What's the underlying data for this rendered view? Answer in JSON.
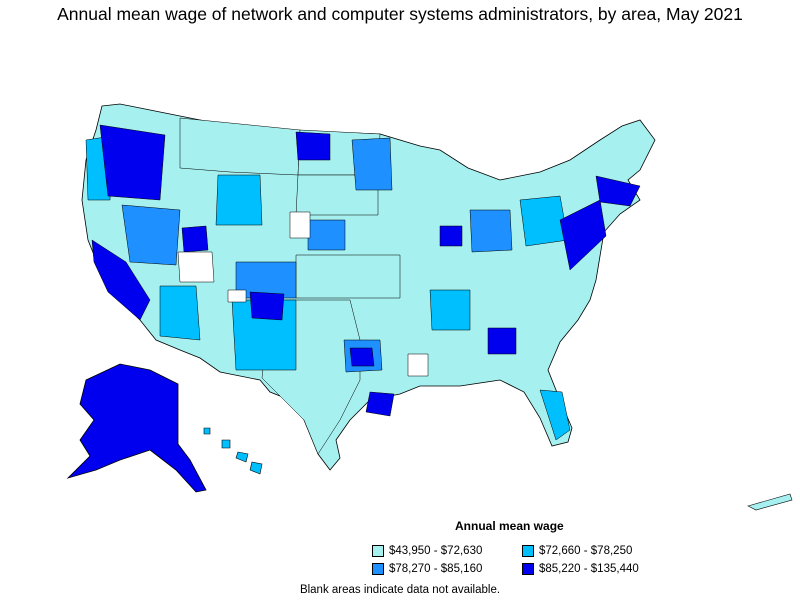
{
  "title": "Annual mean wage of network and computer systems administrators, by area, May 2021",
  "legend": {
    "title": "Annual mean wage",
    "items": [
      {
        "label": "$43,950 - $72,630",
        "color": "#a6f0f0"
      },
      {
        "label": "$72,660 - $78,250",
        "color": "#00bfff"
      },
      {
        "label": "$78,270 - $85,160",
        "color": "#1e90ff"
      },
      {
        "label": "$85,220 - $135,440",
        "color": "#0000ee"
      }
    ]
  },
  "footnote": "Blank areas indicate data not available.",
  "map": {
    "type": "choropleth",
    "no_data_color": "#ffffff",
    "border_color": "#000000"
  }
}
